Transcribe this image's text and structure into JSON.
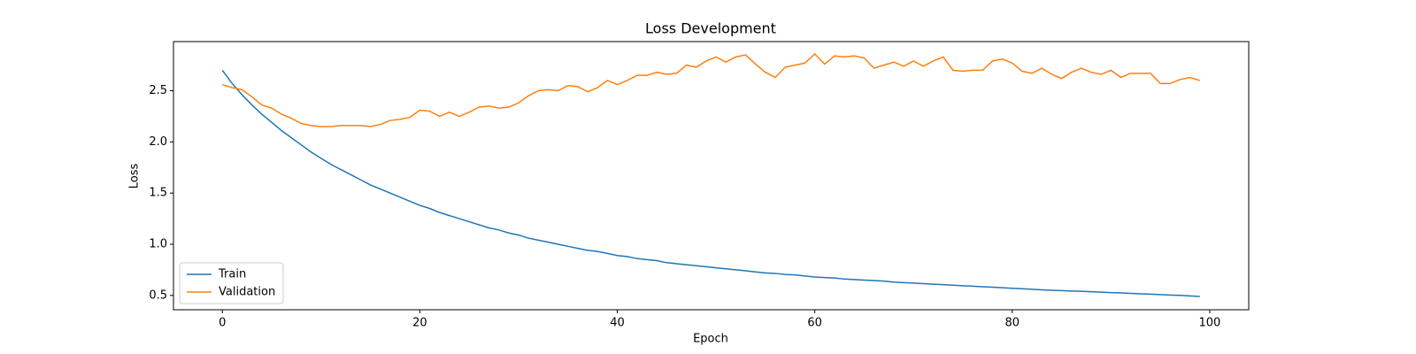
{
  "chart_data": {
    "type": "line",
    "title": "Loss Development",
    "x_label": "Epoch",
    "y_label": "Loss",
    "x": [
      0,
      1,
      2,
      3,
      4,
      5,
      6,
      7,
      8,
      9,
      10,
      11,
      12,
      13,
      14,
      15,
      16,
      17,
      18,
      19,
      20,
      21,
      22,
      23,
      24,
      25,
      26,
      27,
      28,
      29,
      30,
      31,
      32,
      33,
      34,
      35,
      36,
      37,
      38,
      39,
      40,
      41,
      42,
      43,
      44,
      45,
      46,
      47,
      48,
      49,
      50,
      51,
      52,
      53,
      54,
      55,
      56,
      57,
      58,
      59,
      60,
      61,
      62,
      63,
      64,
      65,
      66,
      67,
      68,
      69,
      70,
      71,
      72,
      73,
      74,
      75,
      76,
      77,
      78,
      79,
      80,
      81,
      82,
      83,
      84,
      85,
      86,
      87,
      88,
      89,
      90,
      91,
      92,
      93,
      94,
      95,
      96,
      97,
      98,
      99
    ],
    "series": [
      {
        "name": "Train",
        "color": "#1f77b4",
        "values": [
          2.7,
          2.57,
          2.46,
          2.36,
          2.27,
          2.19,
          2.11,
          2.04,
          1.97,
          1.9,
          1.84,
          1.78,
          1.73,
          1.68,
          1.63,
          1.58,
          1.54,
          1.5,
          1.46,
          1.42,
          1.38,
          1.35,
          1.31,
          1.28,
          1.25,
          1.22,
          1.19,
          1.16,
          1.14,
          1.11,
          1.09,
          1.06,
          1.04,
          1.02,
          1.0,
          0.98,
          0.96,
          0.94,
          0.93,
          0.91,
          0.89,
          0.88,
          0.86,
          0.85,
          0.84,
          0.82,
          0.81,
          0.8,
          0.79,
          0.78,
          0.77,
          0.76,
          0.75,
          0.74,
          0.73,
          0.72,
          0.715,
          0.705,
          0.7,
          0.69,
          0.68,
          0.675,
          0.67,
          0.66,
          0.655,
          0.65,
          0.645,
          0.64,
          0.63,
          0.625,
          0.62,
          0.615,
          0.61,
          0.605,
          0.6,
          0.595,
          0.59,
          0.585,
          0.58,
          0.575,
          0.57,
          0.565,
          0.56,
          0.555,
          0.55,
          0.547,
          0.543,
          0.54,
          0.536,
          0.532,
          0.528,
          0.524,
          0.52,
          0.516,
          0.512,
          0.508,
          0.504,
          0.5,
          0.495,
          0.49
        ]
      },
      {
        "name": "Validation",
        "color": "#ff7f0e",
        "values": [
          2.56,
          2.53,
          2.51,
          2.44,
          2.36,
          2.33,
          2.27,
          2.23,
          2.18,
          2.16,
          2.15,
          2.15,
          2.16,
          2.16,
          2.16,
          2.15,
          2.17,
          2.21,
          2.22,
          2.24,
          2.31,
          2.3,
          2.25,
          2.29,
          2.25,
          2.29,
          2.34,
          2.35,
          2.33,
          2.34,
          2.38,
          2.45,
          2.5,
          2.51,
          2.5,
          2.55,
          2.54,
          2.49,
          2.53,
          2.6,
          2.56,
          2.6,
          2.65,
          2.65,
          2.68,
          2.66,
          2.67,
          2.75,
          2.73,
          2.79,
          2.83,
          2.78,
          2.83,
          2.85,
          2.76,
          2.68,
          2.63,
          2.73,
          2.75,
          2.77,
          2.86,
          2.76,
          2.84,
          2.83,
          2.84,
          2.82,
          2.72,
          2.75,
          2.78,
          2.74,
          2.79,
          2.74,
          2.79,
          2.83,
          2.7,
          2.69,
          2.7,
          2.7,
          2.79,
          2.81,
          2.77,
          2.69,
          2.67,
          2.72,
          2.66,
          2.62,
          2.68,
          2.72,
          2.68,
          2.66,
          2.7,
          2.63,
          2.67,
          2.67,
          2.67,
          2.57,
          2.57,
          2.61,
          2.63,
          2.6
        ]
      }
    ],
    "xlim": [
      -4.95,
      103.95
    ],
    "xticks": [
      0,
      20,
      40,
      60,
      80,
      100
    ],
    "ylim": [
      0.36,
      2.98
    ],
    "yticks": [
      0.5,
      {
        "value": 1,
        "label": "1.0"
      },
      1.5,
      {
        "value": 2,
        "label": "2.0"
      },
      2.5
    ],
    "grid": false,
    "legend": "lower left"
  }
}
